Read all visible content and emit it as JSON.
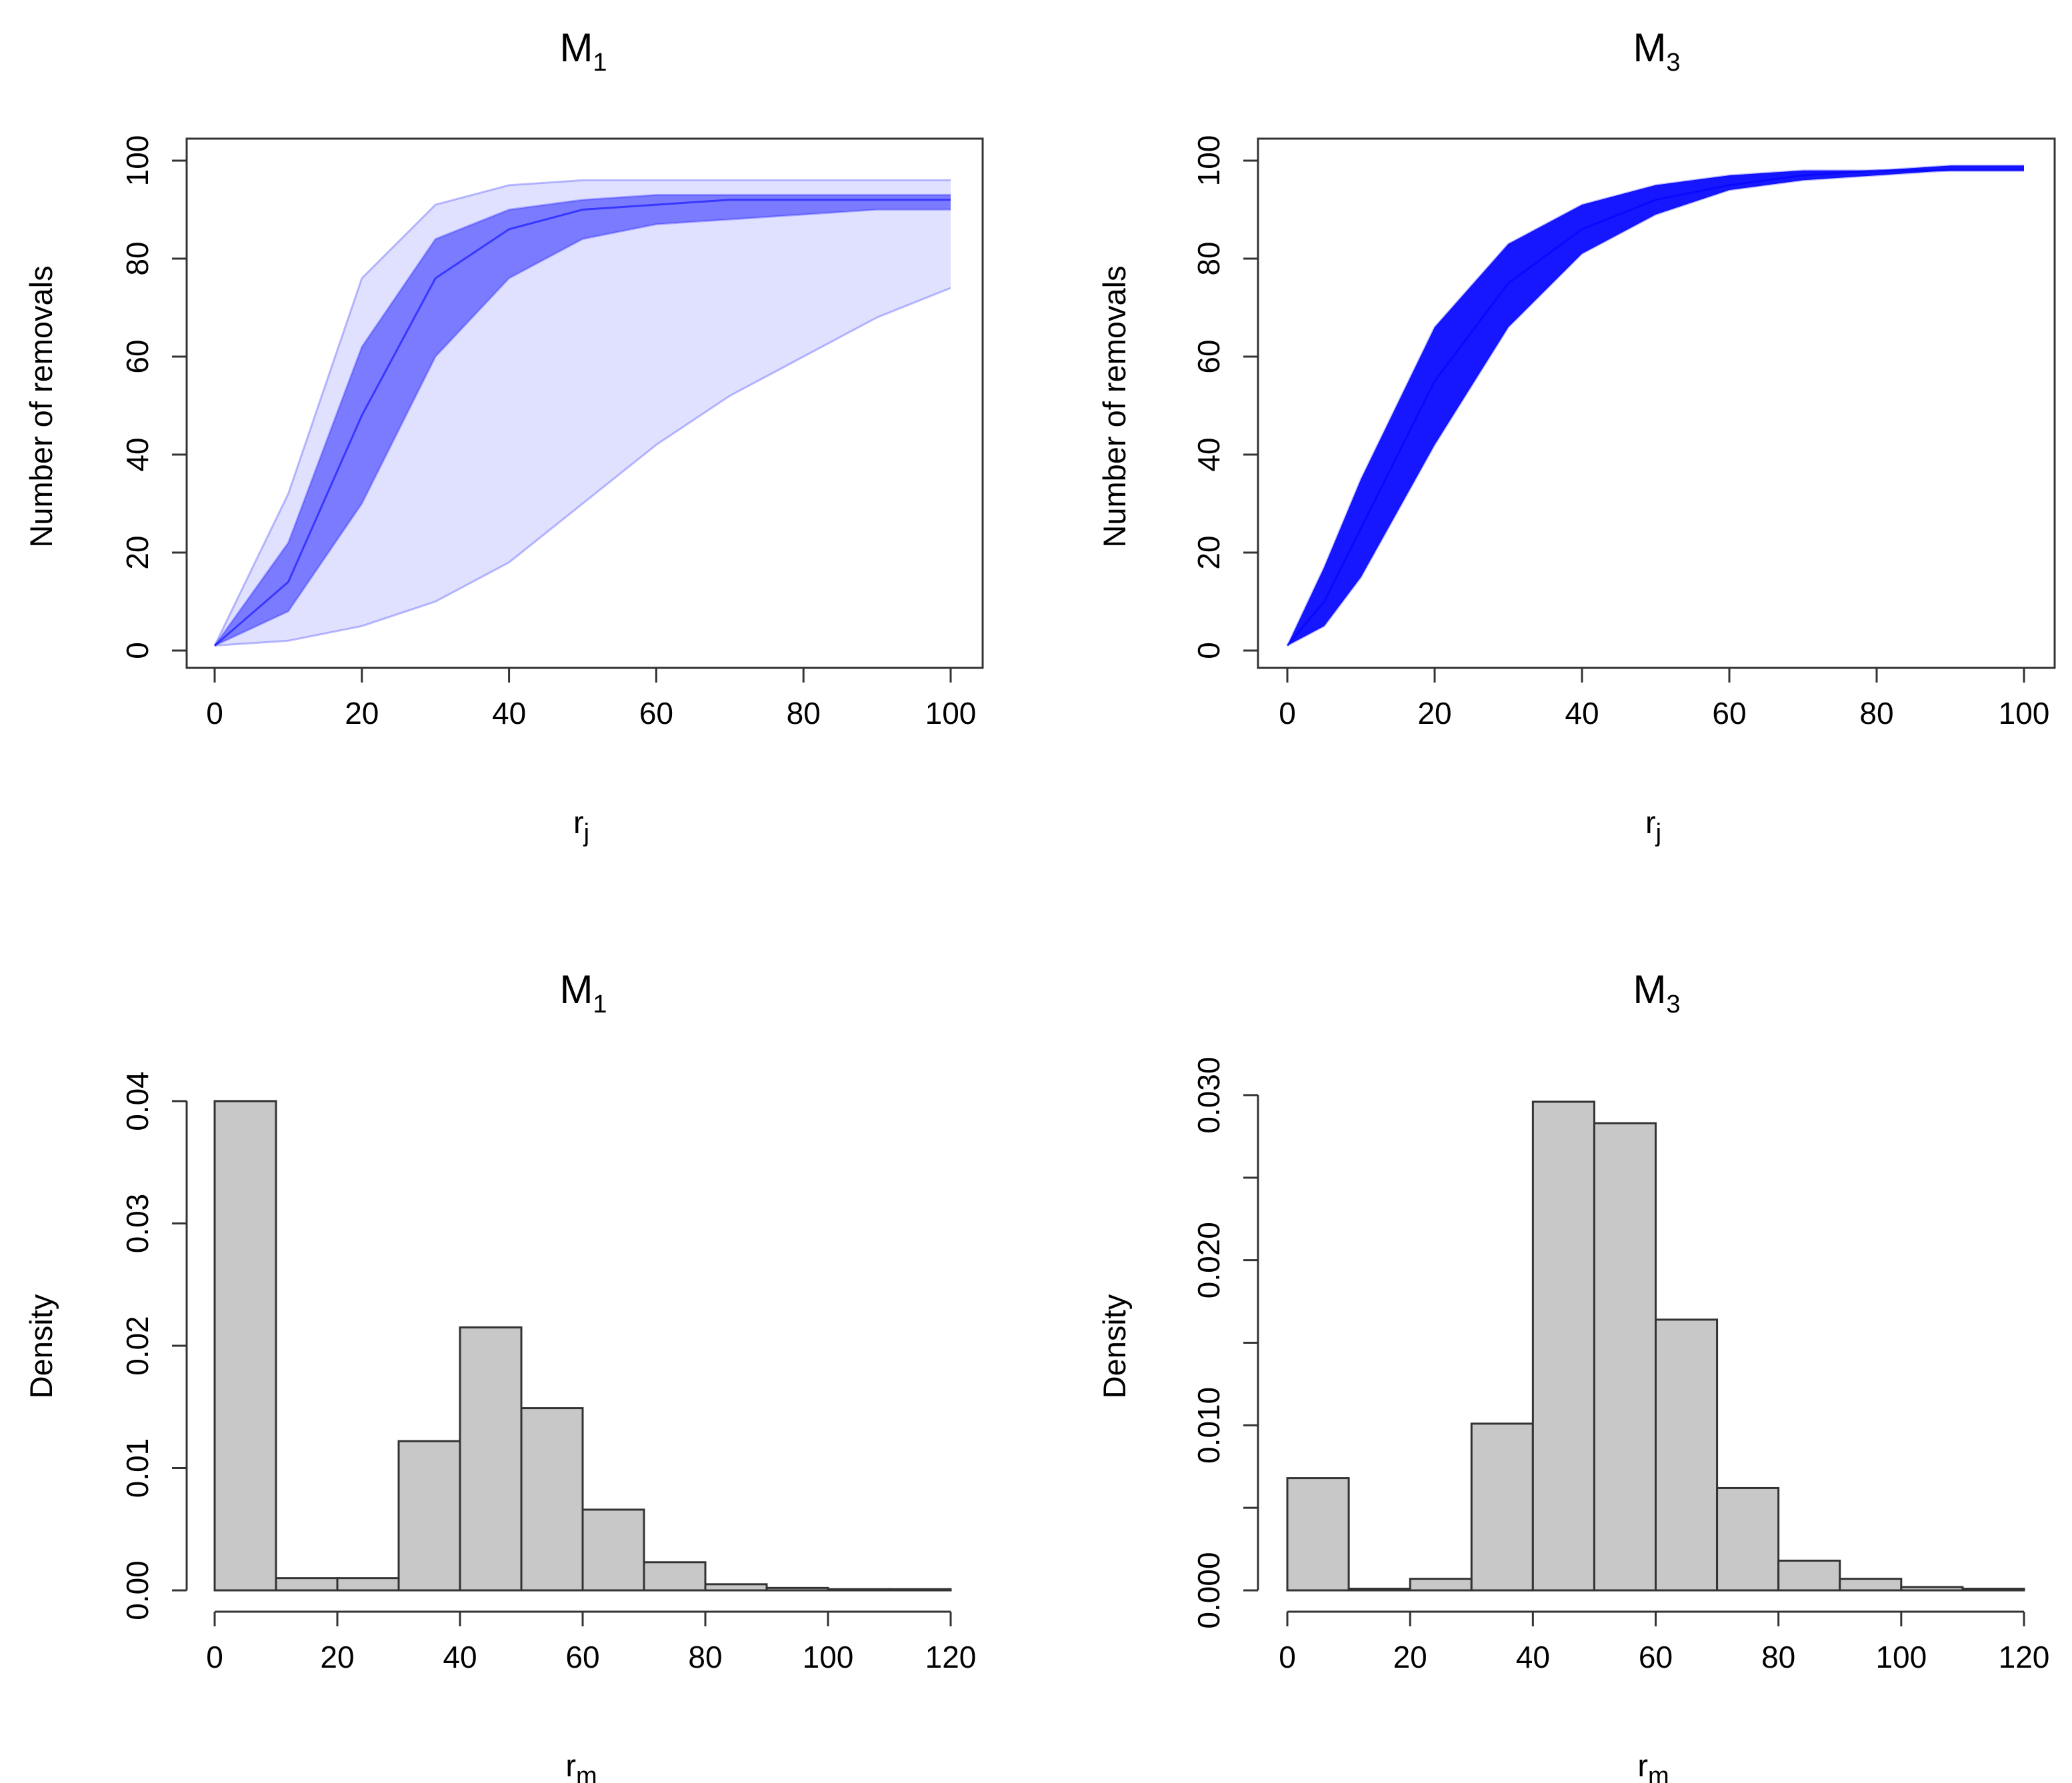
{
  "colors": {
    "curve": "#0000ff",
    "bar_fill": "#c8c8c8",
    "bar_stroke": "#333333",
    "axis": "#333333"
  },
  "chart_data": [
    {
      "type": "line",
      "title": "M",
      "title_sub": "1",
      "xlabel": "r",
      "xlabel_sub": "j",
      "ylabel": "Number of removals",
      "xlim": [
        0,
        100
      ],
      "ylim": [
        0,
        100
      ],
      "xticks": [
        0,
        20,
        40,
        60,
        80,
        100
      ],
      "yticks": [
        0,
        20,
        40,
        60,
        80,
        100
      ],
      "box": true,
      "note": "Many semi-transparent blue trajectories; envelope of simulated removal curves",
      "series": [
        {
          "name": "lower-envelope",
          "x": [
            0,
            10,
            20,
            30,
            40,
            50,
            60,
            70,
            80,
            90,
            100
          ],
          "y": [
            1,
            2,
            5,
            10,
            18,
            30,
            42,
            52,
            60,
            68,
            74
          ]
        },
        {
          "name": "lower-quartile",
          "x": [
            0,
            10,
            20,
            30,
            40,
            50,
            60,
            70,
            80,
            90,
            100
          ],
          "y": [
            1,
            8,
            30,
            60,
            76,
            84,
            87,
            88,
            89,
            90,
            90
          ]
        },
        {
          "name": "median",
          "x": [
            0,
            10,
            20,
            30,
            40,
            50,
            60,
            70,
            80,
            90,
            100
          ],
          "y": [
            1,
            14,
            48,
            76,
            86,
            90,
            91,
            92,
            92,
            92,
            92
          ]
        },
        {
          "name": "upper-quartile",
          "x": [
            0,
            10,
            20,
            30,
            40,
            50,
            60,
            70,
            80,
            90,
            100
          ],
          "y": [
            1,
            22,
            62,
            84,
            90,
            92,
            93,
            93,
            93,
            93,
            93
          ]
        },
        {
          "name": "upper-envelope",
          "x": [
            0,
            10,
            20,
            30,
            40,
            50,
            60,
            70,
            80,
            90,
            100
          ],
          "y": [
            1,
            32,
            76,
            91,
            95,
            96,
            96,
            96,
            96,
            96,
            96
          ]
        }
      ]
    },
    {
      "type": "line",
      "title": "M",
      "title_sub": "3",
      "xlabel": "r",
      "xlabel_sub": "j",
      "ylabel": "Number of removals",
      "xlim": [
        0,
        100
      ],
      "ylim": [
        0,
        100
      ],
      "xticks": [
        0,
        20,
        40,
        60,
        80,
        100
      ],
      "yticks": [
        0,
        20,
        40,
        60,
        80,
        100
      ],
      "box": true,
      "note": "Dense band of blue trajectories",
      "series": [
        {
          "name": "lower-envelope",
          "x": [
            0,
            5,
            10,
            20,
            30,
            40,
            50,
            60,
            70,
            80,
            90,
            100
          ],
          "y": [
            1,
            5,
            15,
            42,
            66,
            81,
            89,
            94,
            96,
            97,
            98,
            98
          ]
        },
        {
          "name": "median",
          "x": [
            0,
            5,
            10,
            20,
            30,
            40,
            50,
            60,
            70,
            80,
            90,
            100
          ],
          "y": [
            1,
            10,
            25,
            55,
            75,
            86,
            92,
            95,
            97,
            98,
            98,
            98
          ]
        },
        {
          "name": "upper-envelope",
          "x": [
            0,
            5,
            10,
            20,
            30,
            40,
            50,
            60,
            70,
            80,
            90,
            100
          ],
          "y": [
            1,
            17,
            35,
            66,
            83,
            91,
            95,
            97,
            98,
            98,
            99,
            99
          ]
        }
      ]
    },
    {
      "type": "bar",
      "title": "M",
      "title_sub": "1",
      "xlabel": "r",
      "xlabel_sub": "m",
      "ylabel": "Density",
      "xlim": [
        0,
        120
      ],
      "ylim": [
        0,
        0.04
      ],
      "xticks": [
        0,
        20,
        40,
        60,
        80,
        100,
        120
      ],
      "yticks": [
        0,
        0.01,
        0.02,
        0.03,
        0.04
      ],
      "ytick_labels": [
        "0.00",
        "0.01",
        "0.02",
        "0.03",
        "0.04"
      ],
      "bin_width": 10,
      "bins": [
        0,
        10,
        20,
        30,
        40,
        50,
        60,
        70,
        80,
        90,
        100,
        110
      ],
      "values": [
        0.04,
        0.001,
        0.001,
        0.0122,
        0.0215,
        0.0149,
        0.0066,
        0.0023,
        0.0005,
        0.0002,
        0.0001,
        0.0001
      ]
    },
    {
      "type": "bar",
      "title": "M",
      "title_sub": "3",
      "xlabel": "r",
      "xlabel_sub": "m",
      "ylabel": "Density",
      "xlim": [
        0,
        120
      ],
      "ylim": [
        0,
        0.03
      ],
      "xticks": [
        0,
        20,
        40,
        60,
        80,
        100,
        120
      ],
      "yticks": [
        0,
        0.005,
        0.01,
        0.015,
        0.02,
        0.025,
        0.03
      ],
      "ytick_labels": [
        "0.000",
        "",
        "0.010",
        "",
        "0.020",
        "",
        "0.030"
      ],
      "bin_width": 10,
      "bins": [
        0,
        10,
        20,
        30,
        40,
        50,
        60,
        70,
        80,
        90,
        100,
        110
      ],
      "values": [
        0.0068,
        0.0001,
        0.0007,
        0.0101,
        0.0296,
        0.0283,
        0.0164,
        0.0062,
        0.0018,
        0.0007,
        0.0002,
        0.0001
      ]
    }
  ]
}
